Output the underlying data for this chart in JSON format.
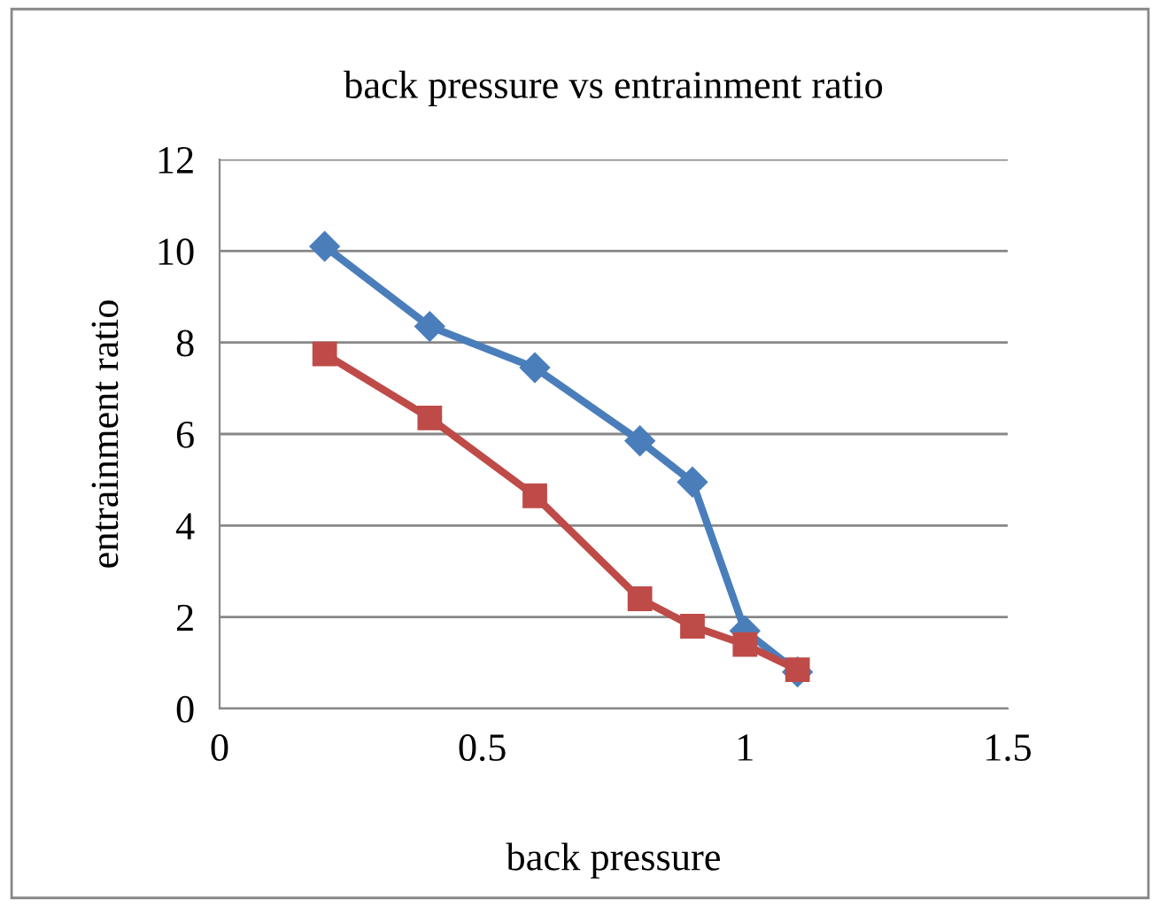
{
  "chart_data": {
    "type": "line",
    "title": "back pressure vs entrainment ratio",
    "xlabel": "back pressure",
    "ylabel": "entrainment ratio",
    "x": [
      0.2,
      0.4,
      0.6,
      0.8,
      0.9,
      1.0,
      1.1
    ],
    "series": [
      {
        "color": "#4a7ebb",
        "marker": "diamond",
        "values": [
          10.1,
          8.35,
          7.45,
          5.85,
          4.95,
          1.7,
          0.8
        ]
      },
      {
        "color": "#be4b48",
        "marker": "square",
        "values": [
          7.75,
          6.35,
          4.65,
          2.4,
          1.8,
          1.4,
          0.85
        ]
      }
    ],
    "xlim": [
      0,
      1.5
    ],
    "xticks": [
      0,
      0.5,
      1,
      1.5
    ],
    "ylim": [
      0,
      12
    ],
    "yticks": [
      0,
      2,
      4,
      6,
      8,
      10,
      12
    ],
    "grid": "y",
    "legend": false
  }
}
